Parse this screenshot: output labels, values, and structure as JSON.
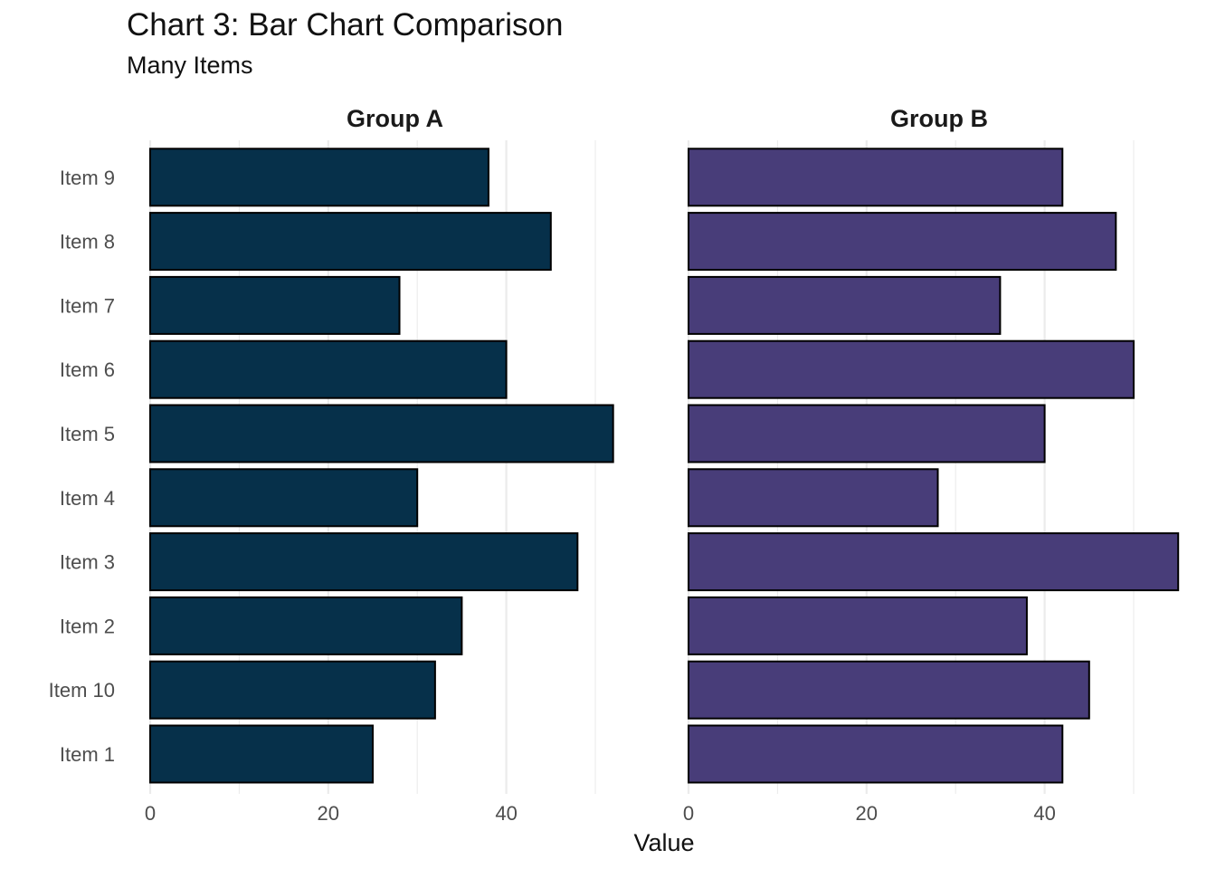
{
  "title": "Chart 3: Bar Chart Comparison",
  "subtitle": "Many Items",
  "colors": {
    "group_a": "#06304A",
    "group_b": "#483D79",
    "bar_outline": "#000000",
    "gridline": "#EBEBEB"
  },
  "chart_data": {
    "type": "bar",
    "orientation": "horizontal",
    "title": "Chart 3: Bar Chart Comparison",
    "subtitle": "Many Items",
    "xlabel": "Value",
    "ylabel": "",
    "categories": [
      "Item 1",
      "Item 10",
      "Item 2",
      "Item 3",
      "Item 4",
      "Item 5",
      "Item 6",
      "Item 7",
      "Item 8",
      "Item 9"
    ],
    "x_ticks": [
      0,
      20,
      40
    ],
    "xlim": [
      0,
      55
    ],
    "grid": true,
    "legend": "none",
    "facets": [
      {
        "name": "Group A",
        "values": [
          25,
          32,
          35,
          48,
          30,
          52,
          40,
          28,
          45,
          38
        ]
      },
      {
        "name": "Group B",
        "values": [
          42,
          45,
          38,
          55,
          28,
          40,
          50,
          35,
          48,
          42
        ]
      }
    ]
  }
}
